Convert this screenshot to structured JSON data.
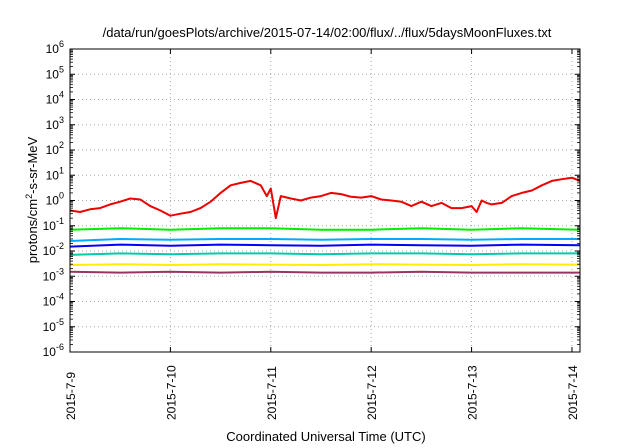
{
  "chart_data": {
    "type": "line",
    "title": "/data/run/goesPlots/archive/2015-07-14/02:00/flux/../flux/5daysMoonFluxes.txt",
    "xlabel": "Coordinated Universal Time (UTC)",
    "ylabel_base": "protons/cm",
    "ylabel_sup": "2",
    "ylabel_rest": "-s-sr-MeV",
    "x_tick_labels": [
      "2015-7-9",
      "2015-7-10",
      "2015-7-11",
      "2015-7-12",
      "2015-7-13",
      "2015-7-14"
    ],
    "x_ticks_days": [
      0,
      1,
      2,
      3,
      4,
      5
    ],
    "xlim_days": [
      0,
      5.08
    ],
    "y_scale": "log",
    "ylim_exp": [
      -6,
      6
    ],
    "y_tick_base": "10",
    "y_tick_exponents": [
      "-6",
      "-5",
      "-4",
      "-3",
      "-2",
      "-1",
      "0",
      "1",
      "2",
      "3",
      "4",
      "5",
      "6"
    ],
    "grid": true,
    "series": [
      {
        "color": "#ee0000",
        "x": [
          0,
          0.1,
          0.2,
          0.3,
          0.4,
          0.5,
          0.6,
          0.7,
          0.8,
          0.9,
          1.0,
          1.1,
          1.2,
          1.3,
          1.4,
          1.5,
          1.6,
          1.7,
          1.8,
          1.9,
          1.96,
          2.0,
          2.05,
          2.1,
          2.2,
          2.3,
          2.4,
          2.5,
          2.6,
          2.7,
          2.8,
          2.9,
          3.0,
          3.1,
          3.2,
          3.3,
          3.4,
          3.5,
          3.6,
          3.7,
          3.8,
          3.9,
          4.0,
          4.05,
          4.1,
          4.15,
          4.2,
          4.3,
          4.4,
          4.5,
          4.6,
          4.7,
          4.8,
          4.9,
          5.0,
          5.08
        ],
        "y": [
          0.4,
          0.35,
          0.45,
          0.5,
          0.7,
          0.9,
          1.2,
          1.1,
          0.6,
          0.4,
          0.25,
          0.3,
          0.35,
          0.5,
          0.9,
          2,
          4,
          5,
          6,
          4,
          1.5,
          3,
          0.2,
          1.5,
          1.2,
          1.0,
          1.3,
          1.5,
          2.0,
          1.8,
          1.4,
          1.3,
          1.5,
          1.1,
          1.0,
          0.9,
          0.6,
          0.9,
          0.6,
          0.8,
          0.5,
          0.5,
          0.6,
          0.35,
          1.0,
          0.8,
          0.7,
          0.8,
          1.5,
          2,
          2.5,
          4,
          6,
          7,
          8,
          6
        ]
      },
      {
        "color": "#00ee00",
        "x": [
          0,
          0.5,
          1.0,
          1.5,
          2.0,
          2.5,
          3.0,
          3.5,
          4.0,
          4.5,
          5.08
        ],
        "y": [
          0.07,
          0.08,
          0.07,
          0.08,
          0.08,
          0.07,
          0.07,
          0.08,
          0.07,
          0.08,
          0.07
        ]
      },
      {
        "color": "#00aaff",
        "x": [
          0,
          0.5,
          1.0,
          1.5,
          2.0,
          2.5,
          3.0,
          3.5,
          4.0,
          4.5,
          5.08
        ],
        "y": [
          0.025,
          0.03,
          0.028,
          0.03,
          0.03,
          0.028,
          0.03,
          0.03,
          0.028,
          0.03,
          0.03
        ]
      },
      {
        "color": "#0000ff",
        "x": [
          0,
          0.5,
          1.0,
          1.5,
          2.0,
          2.5,
          3.0,
          3.5,
          4.0,
          4.5,
          5.08
        ],
        "y": [
          0.015,
          0.018,
          0.016,
          0.018,
          0.017,
          0.016,
          0.018,
          0.017,
          0.016,
          0.018,
          0.017
        ]
      },
      {
        "color": "#00ccaa",
        "x": [
          0,
          0.5,
          1.0,
          1.5,
          2.0,
          2.5,
          3.0,
          3.5,
          4.0,
          4.5,
          5.08
        ],
        "y": [
          0.007,
          0.008,
          0.0075,
          0.008,
          0.008,
          0.0075,
          0.008,
          0.008,
          0.0075,
          0.008,
          0.008
        ]
      },
      {
        "color": "#ffee00",
        "x": [
          0,
          0.5,
          1.0,
          1.5,
          2.0,
          2.5,
          3.0,
          3.5,
          4.0,
          4.5,
          5.08
        ],
        "y": [
          0.0028,
          0.003,
          0.0028,
          0.003,
          0.0029,
          0.0028,
          0.003,
          0.0029,
          0.0028,
          0.003,
          0.0029
        ]
      },
      {
        "color": "#993366",
        "x": [
          0,
          0.5,
          1.0,
          1.5,
          2.0,
          2.5,
          3.0,
          3.5,
          4.0,
          4.5,
          5.08
        ],
        "y": [
          0.0015,
          0.0014,
          0.0015,
          0.0014,
          0.0015,
          0.0014,
          0.0014,
          0.0015,
          0.0014,
          0.0014,
          0.0014
        ]
      }
    ]
  }
}
